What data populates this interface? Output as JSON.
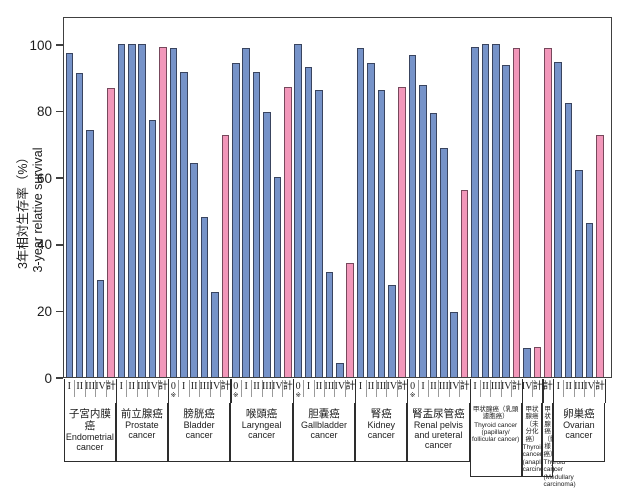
{
  "y_axis": {
    "label_ja": "3年相対生存率（%）",
    "label_en": "3-year relative survival",
    "tick_labels": [
      "0",
      "20",
      "40",
      "60",
      "80",
      "100"
    ]
  },
  "stage_zero_note_marker": "※",
  "colors": {
    "stage_bar_fill": "#7693c9",
    "stage_bar_border": "#39445f",
    "total_bar_fill": "#f297ba",
    "total_bar_border": "#77485c",
    "axis_frame": "#404040"
  },
  "chart_data": {
    "type": "bar",
    "ylim": [
      0,
      100
    ],
    "ylabel_ja": "3年相対生存率（%）",
    "ylabel_en": "3-year relative survival",
    "grid": false,
    "legend": false,
    "groups": [
      {
        "name_ja": "子宮内膜癌",
        "name_en": "Endometrial cancer",
        "bars": [
          {
            "stage": "I",
            "value": 97
          },
          {
            "stage": "II",
            "value": 91
          },
          {
            "stage": "III",
            "value": 74
          },
          {
            "stage": "IV",
            "value": 29
          },
          {
            "stage": "計",
            "value": 86.5,
            "total": true
          }
        ]
      },
      {
        "name_ja": "前立腺癌",
        "name_en": "Prostate cancer",
        "bars": [
          {
            "stage": "I",
            "value": 100
          },
          {
            "stage": "II",
            "value": 100
          },
          {
            "stage": "III",
            "value": 100
          },
          {
            "stage": "IV",
            "value": 77
          },
          {
            "stage": "計",
            "value": 99,
            "total": true
          }
        ]
      },
      {
        "name_ja": "膀胱癌",
        "name_en": "Bladder cancer",
        "bars": [
          {
            "stage": "0",
            "value": 98.5,
            "note": true
          },
          {
            "stage": "I",
            "value": 91.5
          },
          {
            "stage": "II",
            "value": 64
          },
          {
            "stage": "III",
            "value": 48
          },
          {
            "stage": "IV",
            "value": 25.5
          },
          {
            "stage": "計",
            "value": 72.5,
            "total": true
          }
        ]
      },
      {
        "name_ja": "喉頭癌",
        "name_en": "Laryngeal cancer",
        "bars": [
          {
            "stage": "0",
            "value": 94,
            "note": true
          },
          {
            "stage": "I",
            "value": 98.5
          },
          {
            "stage": "II",
            "value": 91.5
          },
          {
            "stage": "III",
            "value": 79.5
          },
          {
            "stage": "IV",
            "value": 60
          },
          {
            "stage": "計",
            "value": 87,
            "total": true
          }
        ]
      },
      {
        "name_ja": "胆嚢癌",
        "name_en": "Gallbladder cancer",
        "bars": [
          {
            "stage": "0",
            "value": 100,
            "note": true
          },
          {
            "stage": "I",
            "value": 93
          },
          {
            "stage": "II",
            "value": 86
          },
          {
            "stage": "III",
            "value": 31.5
          },
          {
            "stage": "IV",
            "value": 4
          },
          {
            "stage": "計",
            "value": 34,
            "total": true
          }
        ]
      },
      {
        "name_ja": "腎癌",
        "name_en": "Kidney cancer",
        "bars": [
          {
            "stage": "I",
            "value": 98.5
          },
          {
            "stage": "II",
            "value": 94
          },
          {
            "stage": "III",
            "value": 86
          },
          {
            "stage": "IV",
            "value": 27.5
          },
          {
            "stage": "計",
            "value": 87,
            "total": true
          }
        ]
      },
      {
        "name_ja": "腎盂尿管癌",
        "name_en": "Renal pelvis and ureteral cancer",
        "bars": [
          {
            "stage": "0",
            "value": 96.5,
            "note": true
          },
          {
            "stage": "I",
            "value": 87.5
          },
          {
            "stage": "II",
            "value": 79
          },
          {
            "stage": "III",
            "value": 68.5
          },
          {
            "stage": "IV",
            "value": 19.5
          },
          {
            "stage": "計",
            "value": 56,
            "total": true
          }
        ]
      },
      {
        "name_ja": "甲状腺癌（乳頭濾胞癌）",
        "name_en": "Thyroid cancer (papillary/ follicular cancer)",
        "bars": [
          {
            "stage": "I",
            "value": 99
          },
          {
            "stage": "II",
            "value": 100
          },
          {
            "stage": "III",
            "value": 100
          },
          {
            "stage": "IV",
            "value": 93.5
          },
          {
            "stage": "計",
            "value": 98.5,
            "total": true
          }
        ]
      },
      {
        "name_ja": "甲状腺癌（未分化癌）",
        "name_en": "Thyroid cancer (anaplastic carcinoma)",
        "bars": [
          {
            "stage": "IV",
            "value": 8.5
          },
          {
            "stage": "計",
            "value": 9,
            "total": true
          }
        ]
      },
      {
        "name_ja": "甲状腺癌（髄様癌）",
        "name_en": "Thyroid cancer (Medullary carcinoma)",
        "bars": [
          {
            "stage": "計",
            "value": 98.5,
            "total": true
          }
        ]
      },
      {
        "name_ja": "卵巣癌",
        "name_en": "Ovarian cancer",
        "bars": [
          {
            "stage": "I",
            "value": 94.5
          },
          {
            "stage": "II",
            "value": 82
          },
          {
            "stage": "III",
            "value": 62
          },
          {
            "stage": "IV",
            "value": 46
          },
          {
            "stage": "計",
            "value": 72.5,
            "total": true
          }
        ]
      }
    ]
  }
}
